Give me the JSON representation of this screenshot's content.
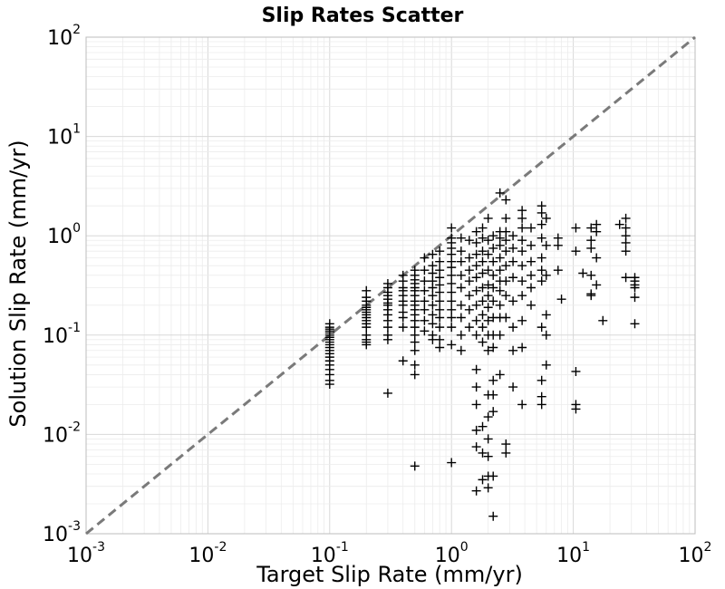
{
  "chart_data": {
    "type": "scatter",
    "title": "Slip Rates Scatter",
    "xlabel": "Target Slip Rate (mm/yr)",
    "ylabel": "Solution Slip Rate (mm/yr)",
    "xscale": "log",
    "yscale": "log",
    "xlim": [
      0.001,
      100
    ],
    "ylim": [
      0.001,
      100
    ],
    "grid": true,
    "x_ticks": [
      {
        "base": "10",
        "exp": "-3"
      },
      {
        "base": "10",
        "exp": "-2"
      },
      {
        "base": "10",
        "exp": "-1"
      },
      {
        "base": "10",
        "exp": "0"
      },
      {
        "base": "10",
        "exp": "1"
      },
      {
        "base": "10",
        "exp": "2"
      }
    ],
    "y_ticks": [
      {
        "base": "10",
        "exp": "-3"
      },
      {
        "base": "10",
        "exp": "-2"
      },
      {
        "base": "10",
        "exp": "-1"
      },
      {
        "base": "10",
        "exp": "0"
      },
      {
        "base": "10",
        "exp": "1"
      },
      {
        "base": "10",
        "exp": "2"
      }
    ],
    "reference_line": {
      "style": "dashed",
      "color": "#7a7a7a",
      "x": [
        0.001,
        100
      ],
      "y": [
        0.001,
        100
      ]
    },
    "marker": {
      "shape": "plus",
      "color": "#000000"
    },
    "points": [
      [
        0.1,
        0.13
      ],
      [
        0.1,
        0.12
      ],
      [
        0.1,
        0.115
      ],
      [
        0.1,
        0.11
      ],
      [
        0.1,
        0.105
      ],
      [
        0.1,
        0.1
      ],
      [
        0.1,
        0.095
      ],
      [
        0.1,
        0.09
      ],
      [
        0.1,
        0.085
      ],
      [
        0.1,
        0.08
      ],
      [
        0.1,
        0.075
      ],
      [
        0.1,
        0.07
      ],
      [
        0.1,
        0.065
      ],
      [
        0.1,
        0.06
      ],
      [
        0.1,
        0.055
      ],
      [
        0.1,
        0.05
      ],
      [
        0.1,
        0.045
      ],
      [
        0.1,
        0.04
      ],
      [
        0.1,
        0.035
      ],
      [
        0.1,
        0.032
      ],
      [
        0.2,
        0.28
      ],
      [
        0.2,
        0.24
      ],
      [
        0.2,
        0.22
      ],
      [
        0.2,
        0.2
      ],
      [
        0.2,
        0.19
      ],
      [
        0.2,
        0.18
      ],
      [
        0.2,
        0.17
      ],
      [
        0.2,
        0.16
      ],
      [
        0.2,
        0.15
      ],
      [
        0.2,
        0.14
      ],
      [
        0.2,
        0.13
      ],
      [
        0.2,
        0.12
      ],
      [
        0.2,
        0.1
      ],
      [
        0.2,
        0.09
      ],
      [
        0.2,
        0.085
      ],
      [
        0.2,
        0.08
      ],
      [
        0.3,
        0.33
      ],
      [
        0.3,
        0.3
      ],
      [
        0.3,
        0.27
      ],
      [
        0.3,
        0.25
      ],
      [
        0.3,
        0.23
      ],
      [
        0.3,
        0.21
      ],
      [
        0.3,
        0.2
      ],
      [
        0.3,
        0.18
      ],
      [
        0.3,
        0.16
      ],
      [
        0.3,
        0.14
      ],
      [
        0.3,
        0.12
      ],
      [
        0.3,
        0.1
      ],
      [
        0.3,
        0.09
      ],
      [
        0.3,
        0.026
      ],
      [
        0.4,
        0.4
      ],
      [
        0.4,
        0.35
      ],
      [
        0.4,
        0.3
      ],
      [
        0.4,
        0.28
      ],
      [
        0.4,
        0.25
      ],
      [
        0.4,
        0.22
      ],
      [
        0.4,
        0.2
      ],
      [
        0.4,
        0.17
      ],
      [
        0.4,
        0.15
      ],
      [
        0.4,
        0.12
      ],
      [
        0.4,
        0.055
      ],
      [
        0.5,
        0.45
      ],
      [
        0.5,
        0.4
      ],
      [
        0.5,
        0.36
      ],
      [
        0.5,
        0.33
      ],
      [
        0.5,
        0.3
      ],
      [
        0.5,
        0.28
      ],
      [
        0.5,
        0.25
      ],
      [
        0.5,
        0.22
      ],
      [
        0.5,
        0.2
      ],
      [
        0.5,
        0.18
      ],
      [
        0.5,
        0.16
      ],
      [
        0.5,
        0.14
      ],
      [
        0.5,
        0.12
      ],
      [
        0.5,
        0.1
      ],
      [
        0.5,
        0.085
      ],
      [
        0.5,
        0.07
      ],
      [
        0.5,
        0.05
      ],
      [
        0.5,
        0.04
      ],
      [
        0.5,
        0.0048
      ],
      [
        0.6,
        0.6
      ],
      [
        0.6,
        0.45
      ],
      [
        0.6,
        0.35
      ],
      [
        0.6,
        0.28
      ],
      [
        0.6,
        0.22
      ],
      [
        0.6,
        0.18
      ],
      [
        0.6,
        0.14
      ],
      [
        0.6,
        0.11
      ],
      [
        0.7,
        0.65
      ],
      [
        0.7,
        0.5
      ],
      [
        0.7,
        0.42
      ],
      [
        0.7,
        0.35
      ],
      [
        0.7,
        0.3
      ],
      [
        0.7,
        0.25
      ],
      [
        0.7,
        0.2
      ],
      [
        0.7,
        0.16
      ],
      [
        0.7,
        0.13
      ],
      [
        0.7,
        0.1
      ],
      [
        0.7,
        0.09
      ],
      [
        0.8,
        0.7
      ],
      [
        0.8,
        0.55
      ],
      [
        0.8,
        0.45
      ],
      [
        0.8,
        0.38
      ],
      [
        0.8,
        0.32
      ],
      [
        0.8,
        0.27
      ],
      [
        0.8,
        0.22
      ],
      [
        0.8,
        0.18
      ],
      [
        0.8,
        0.15
      ],
      [
        0.8,
        0.12
      ],
      [
        0.8,
        0.09
      ],
      [
        0.8,
        0.075
      ],
      [
        1.0,
        1.2
      ],
      [
        1.0,
        0.95
      ],
      [
        1.0,
        0.85
      ],
      [
        1.0,
        0.75
      ],
      [
        1.0,
        0.65
      ],
      [
        1.0,
        0.55
      ],
      [
        1.0,
        0.48
      ],
      [
        1.0,
        0.4
      ],
      [
        1.0,
        0.33
      ],
      [
        1.0,
        0.27
      ],
      [
        1.0,
        0.22
      ],
      [
        1.0,
        0.18
      ],
      [
        1.0,
        0.15
      ],
      [
        1.0,
        0.12
      ],
      [
        1.0,
        0.08
      ],
      [
        1.0,
        0.0052
      ],
      [
        1.2,
        0.95
      ],
      [
        1.2,
        0.7
      ],
      [
        1.2,
        0.55
      ],
      [
        1.2,
        0.4
      ],
      [
        1.2,
        0.3
      ],
      [
        1.2,
        0.2
      ],
      [
        1.2,
        0.15
      ],
      [
        1.2,
        0.1
      ],
      [
        1.2,
        0.07
      ],
      [
        1.4,
        0.9
      ],
      [
        1.4,
        0.6
      ],
      [
        1.4,
        0.45
      ],
      [
        1.4,
        0.35
      ],
      [
        1.4,
        0.25
      ],
      [
        1.4,
        0.18
      ],
      [
        1.4,
        0.12
      ],
      [
        1.6,
        1.1
      ],
      [
        1.6,
        0.85
      ],
      [
        1.6,
        0.65
      ],
      [
        1.6,
        0.5
      ],
      [
        1.6,
        0.38
      ],
      [
        1.6,
        0.28
      ],
      [
        1.6,
        0.2
      ],
      [
        1.6,
        0.14
      ],
      [
        1.6,
        0.1
      ],
      [
        1.6,
        0.045
      ],
      [
        1.6,
        0.03
      ],
      [
        1.6,
        0.02
      ],
      [
        1.6,
        0.011
      ],
      [
        1.6,
        0.0075
      ],
      [
        1.6,
        0.0027
      ],
      [
        1.8,
        1.2
      ],
      [
        1.8,
        0.95
      ],
      [
        1.8,
        0.7
      ],
      [
        1.8,
        0.55
      ],
      [
        1.8,
        0.42
      ],
      [
        1.8,
        0.3
      ],
      [
        1.8,
        0.22
      ],
      [
        1.8,
        0.16
      ],
      [
        1.8,
        0.12
      ],
      [
        1.8,
        0.085
      ],
      [
        1.8,
        0.012
      ],
      [
        1.8,
        0.0065
      ],
      [
        1.8,
        0.0035
      ],
      [
        2.0,
        1.5
      ],
      [
        2.0,
        0.9
      ],
      [
        2.0,
        0.65
      ],
      [
        2.0,
        0.45
      ],
      [
        2.0,
        0.32
      ],
      [
        2.0,
        0.25
      ],
      [
        2.0,
        0.19
      ],
      [
        2.0,
        0.14
      ],
      [
        2.0,
        0.1
      ],
      [
        2.0,
        0.07
      ],
      [
        2.0,
        0.025
      ],
      [
        2.0,
        0.015
      ],
      [
        2.0,
        0.009
      ],
      [
        2.0,
        0.006
      ],
      [
        2.0,
        0.0038
      ],
      [
        2.0,
        0.0029
      ],
      [
        2.2,
        1.0
      ],
      [
        2.2,
        0.75
      ],
      [
        2.2,
        0.55
      ],
      [
        2.2,
        0.4
      ],
      [
        2.2,
        0.3
      ],
      [
        2.2,
        0.22
      ],
      [
        2.2,
        0.15
      ],
      [
        2.2,
        0.1
      ],
      [
        2.2,
        0.075
      ],
      [
        2.2,
        0.035
      ],
      [
        2.2,
        0.025
      ],
      [
        2.2,
        0.017
      ],
      [
        2.2,
        0.0038
      ],
      [
        2.2,
        0.0015
      ],
      [
        2.5,
        2.7
      ],
      [
        2.5,
        1.1
      ],
      [
        2.5,
        0.95
      ],
      [
        2.5,
        0.8
      ],
      [
        2.5,
        0.6
      ],
      [
        2.5,
        0.45
      ],
      [
        2.5,
        0.35
      ],
      [
        2.5,
        0.28
      ],
      [
        2.5,
        0.2
      ],
      [
        2.5,
        0.15
      ],
      [
        2.5,
        0.1
      ],
      [
        2.5,
        0.04
      ],
      [
        2.8,
        2.3
      ],
      [
        2.8,
        1.5
      ],
      [
        2.8,
        1.1
      ],
      [
        2.8,
        0.9
      ],
      [
        2.8,
        0.7
      ],
      [
        2.8,
        0.5
      ],
      [
        2.8,
        0.35
      ],
      [
        2.8,
        0.25
      ],
      [
        2.8,
        0.15
      ],
      [
        2.8,
        0.008
      ],
      [
        2.8,
        0.0065
      ],
      [
        3.2,
        1.0
      ],
      [
        3.2,
        0.75
      ],
      [
        3.2,
        0.55
      ],
      [
        3.2,
        0.38
      ],
      [
        3.2,
        0.22
      ],
      [
        3.2,
        0.12
      ],
      [
        3.2,
        0.07
      ],
      [
        3.2,
        0.03
      ],
      [
        3.8,
        1.8
      ],
      [
        3.8,
        1.5
      ],
      [
        3.8,
        1.2
      ],
      [
        3.8,
        0.9
      ],
      [
        3.8,
        0.7
      ],
      [
        3.8,
        0.5
      ],
      [
        3.8,
        0.35
      ],
      [
        3.8,
        0.25
      ],
      [
        3.8,
        0.14
      ],
      [
        3.8,
        0.075
      ],
      [
        3.8,
        0.02
      ],
      [
        4.5,
        1.2
      ],
      [
        4.5,
        0.8
      ],
      [
        4.5,
        0.55
      ],
      [
        4.5,
        0.4
      ],
      [
        4.5,
        0.3
      ],
      [
        4.5,
        0.2
      ],
      [
        5.5,
        2.0
      ],
      [
        5.5,
        1.7
      ],
      [
        5.5,
        1.3
      ],
      [
        5.5,
        0.95
      ],
      [
        5.5,
        0.6
      ],
      [
        5.5,
        0.45
      ],
      [
        5.5,
        0.35
      ],
      [
        5.5,
        0.12
      ],
      [
        5.5,
        0.035
      ],
      [
        5.5,
        0.024
      ],
      [
        5.5,
        0.02
      ],
      [
        6.0,
        1.5
      ],
      [
        6.0,
        0.8
      ],
      [
        6.0,
        0.4
      ],
      [
        6.0,
        0.16
      ],
      [
        6.0,
        0.1
      ],
      [
        6.0,
        0.05
      ],
      [
        7.5,
        0.95
      ],
      [
        7.5,
        0.8
      ],
      [
        7.5,
        0.45
      ],
      [
        8.0,
        0.23
      ],
      [
        10.5,
        1.2
      ],
      [
        10.5,
        0.7
      ],
      [
        10.5,
        0.043
      ],
      [
        10.5,
        0.02
      ],
      [
        10.5,
        0.018
      ],
      [
        12.0,
        0.42
      ],
      [
        14.0,
        1.2
      ],
      [
        14.0,
        0.9
      ],
      [
        14.0,
        0.75
      ],
      [
        14.0,
        0.4
      ],
      [
        14.0,
        0.26
      ],
      [
        14.0,
        0.25
      ],
      [
        15.5,
        1.3
      ],
      [
        15.5,
        1.1
      ],
      [
        15.5,
        0.6
      ],
      [
        15.5,
        0.32
      ],
      [
        17.5,
        0.14
      ],
      [
        24.0,
        1.3
      ],
      [
        27.0,
        1.5
      ],
      [
        27.0,
        1.2
      ],
      [
        27.0,
        1.0
      ],
      [
        27.0,
        0.85
      ],
      [
        27.0,
        0.7
      ],
      [
        27.0,
        0.38
      ],
      [
        32.0,
        0.38
      ],
      [
        32.0,
        0.35
      ],
      [
        32.0,
        0.32
      ],
      [
        32.0,
        0.3
      ],
      [
        32.0,
        0.24
      ],
      [
        32.0,
        0.13
      ]
    ]
  }
}
